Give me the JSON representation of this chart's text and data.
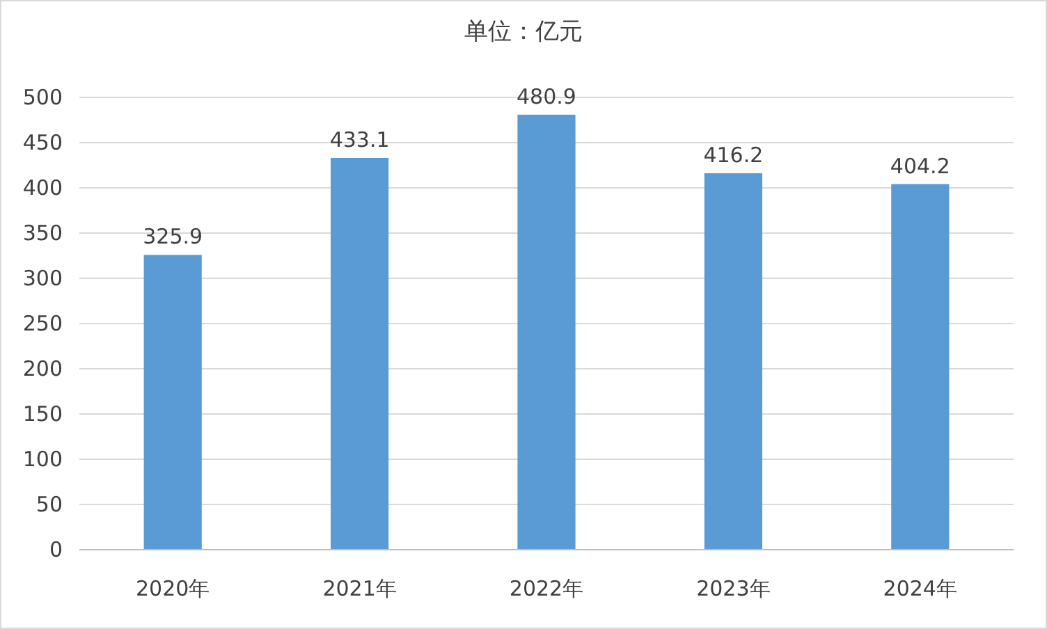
{
  "chart_data": {
    "type": "bar",
    "title": "单位：亿元",
    "categories": [
      "2020年",
      "2021年",
      "2022年",
      "2023年",
      "2024年"
    ],
    "values": [
      325.9,
      433.1,
      480.9,
      416.2,
      404.2
    ],
    "color": "#5b9bd5",
    "ylim": [
      0,
      500
    ],
    "yticks": [
      0,
      50,
      100,
      150,
      200,
      250,
      300,
      350,
      400,
      450,
      500
    ],
    "grid": "y",
    "data_labels": true
  }
}
